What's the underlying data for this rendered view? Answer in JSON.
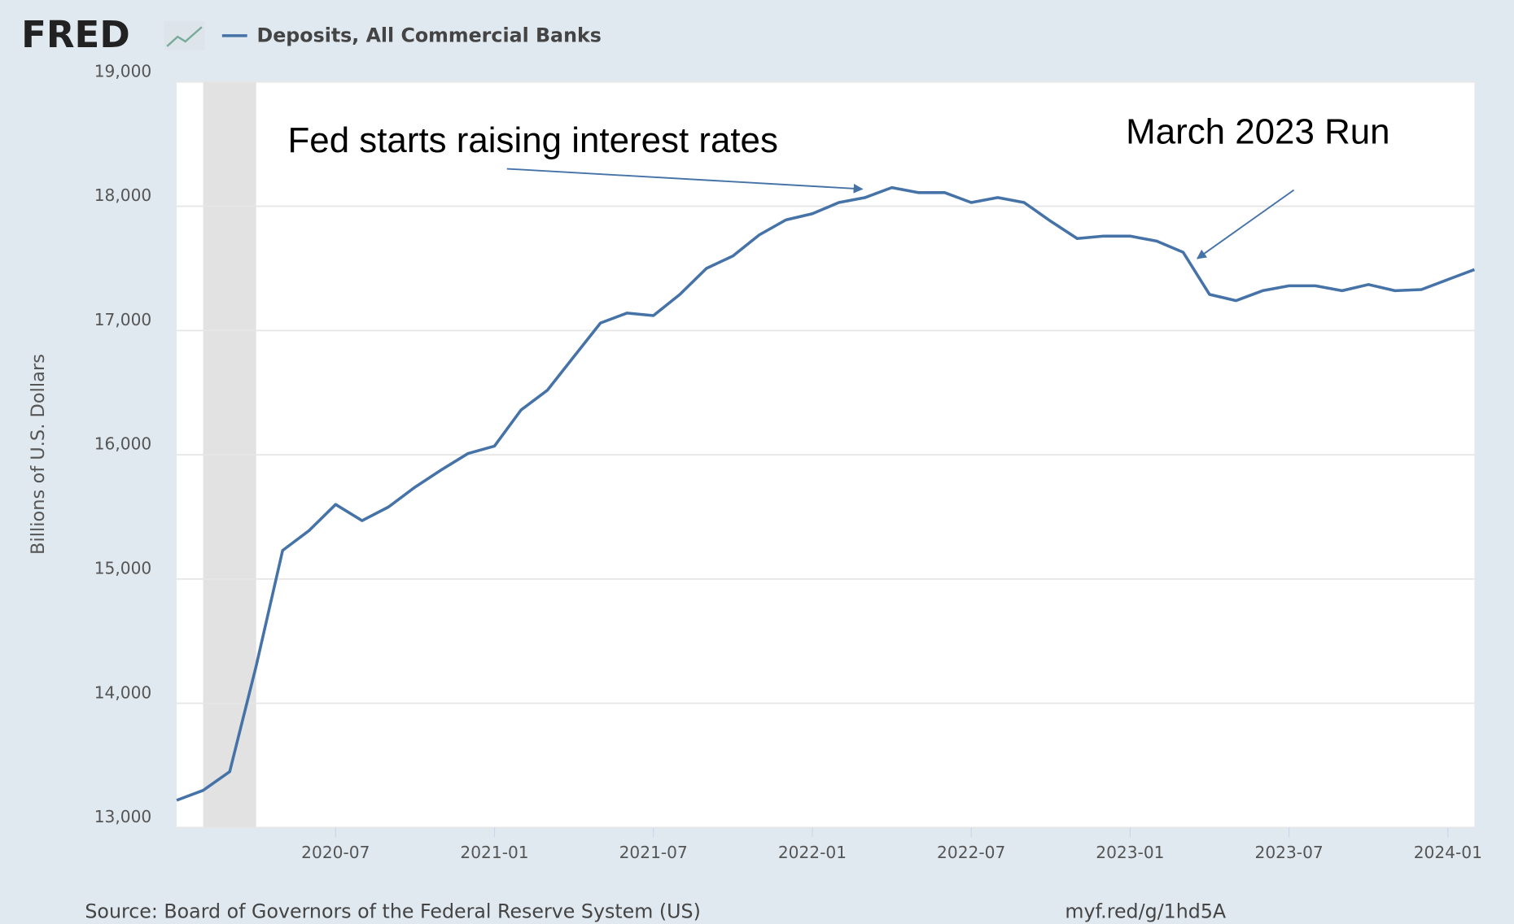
{
  "chart_data": {
    "type": "line",
    "logo": "FRED",
    "y_label": "Billions of U.S. Dollars",
    "source": "Source: Board of Governors of the Federal Reserve System (US)",
    "url": "myf.red/g/1hd5A",
    "annotations": [
      "Fed starts raising interest rates",
      "March 2023 Run"
    ],
    "recession": [
      "2020-02",
      "2020-04"
    ],
    "x": [
      "2020-01",
      "2020-02",
      "2020-03",
      "2020-04",
      "2020-05",
      "2020-06",
      "2020-07",
      "2020-08",
      "2020-09",
      "2020-10",
      "2020-11",
      "2020-12",
      "2021-01",
      "2021-02",
      "2021-03",
      "2021-04",
      "2021-05",
      "2021-06",
      "2021-07",
      "2021-08",
      "2021-09",
      "2021-10",
      "2021-11",
      "2021-12",
      "2022-01",
      "2022-02",
      "2022-03",
      "2022-04",
      "2022-05",
      "2022-06",
      "2022-07",
      "2022-08",
      "2022-09",
      "2022-10",
      "2022-11",
      "2022-12",
      "2023-01",
      "2023-02",
      "2023-03",
      "2023-04",
      "2023-05",
      "2023-06",
      "2023-07",
      "2023-08",
      "2023-09",
      "2023-10",
      "2023-11",
      "2023-12",
      "2024-01",
      "2024-02"
    ],
    "series": [
      {
        "name": "Deposits, All Commercial Banks",
        "color": "#4572a7",
        "values": [
          13220,
          13300,
          13450,
          14300,
          15230,
          15390,
          15600,
          15470,
          15580,
          15740,
          15880,
          16010,
          16070,
          16360,
          16520,
          16790,
          17060,
          17140,
          17120,
          17290,
          17500,
          17600,
          17770,
          17890,
          17940,
          18030,
          18070,
          18150,
          18110,
          18110,
          18030,
          18070,
          18030,
          17880,
          17740,
          17760,
          17760,
          17720,
          17630,
          17290,
          17240,
          17320,
          17360,
          17360,
          17320,
          17370,
          17320,
          17330,
          17410,
          17490
        ]
      }
    ],
    "xlim": [
      "2020-01",
      "2024-02"
    ],
    "xticks": [
      "2020-07",
      "2021-01",
      "2021-07",
      "2022-01",
      "2022-07",
      "2023-01",
      "2023-07",
      "2024-01"
    ],
    "ylim": [
      13000,
      19000
    ],
    "yticks": [
      {
        "value": 13000,
        "label": "13,000"
      },
      {
        "value": 14000,
        "label": "14,000"
      },
      {
        "value": 15000,
        "label": "15,000"
      },
      {
        "value": 16000,
        "label": "16,000"
      },
      {
        "value": 17000,
        "label": "17,000"
      },
      {
        "value": 18000,
        "label": "18,000"
      },
      {
        "value": 19000,
        "label": "19,000"
      }
    ],
    "grid": true
  }
}
